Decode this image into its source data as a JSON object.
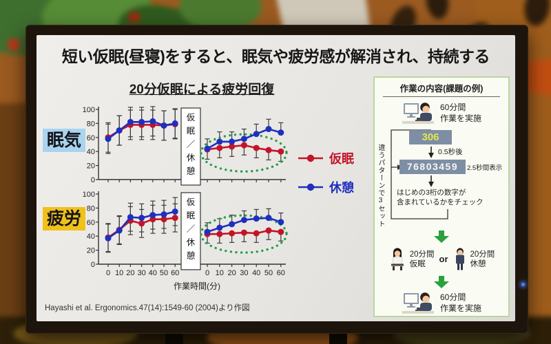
{
  "slide": {
    "title": "短い仮眠(昼寝)をすると、眠気や疲労感が解消され、持続する",
    "chart_section_title": "20分仮眠による疲労回復",
    "xaxis_title": "作業時間(分)",
    "divider_label": "仮眠／休憩",
    "citation": "Hayashi et al. Ergonomics.47(14):1549-60 (2004)より作図",
    "legend": [
      {
        "label": "仮眠",
        "color": "#c31428"
      },
      {
        "label": "休憩",
        "color": "#1f2fc0"
      }
    ]
  },
  "chart_data": [
    {
      "type": "line",
      "label": "眠気",
      "label_bg": "#a9d4ef",
      "x": [
        0,
        10,
        20,
        30,
        40,
        50,
        60
      ],
      "ylim": [
        0,
        100
      ],
      "yticks": [
        0,
        20,
        40,
        60,
        80,
        100
      ],
      "grid": false,
      "series": [
        {
          "name": "仮眠",
          "color": "#c31428",
          "before": [
            60,
            70,
            78,
            78,
            78,
            77,
            79
          ],
          "after": [
            43,
            45,
            47,
            49,
            45,
            42,
            40
          ],
          "err_before": 21,
          "err_after": 14,
          "err_dir_after": "down"
        },
        {
          "name": "休憩",
          "color": "#1f2fc0",
          "before": [
            58,
            70,
            82,
            82,
            83,
            77,
            80
          ],
          "after": [
            44,
            54,
            54,
            58,
            65,
            72,
            67
          ],
          "err_before": 21,
          "err_after": 14,
          "err_dir_after": "up"
        }
      ],
      "highlight": {
        "segment": "after",
        "center_v": 38,
        "color": "#22a04a"
      }
    },
    {
      "type": "line",
      "label": "疲労",
      "label_bg": "#f0c11a",
      "x": [
        0,
        10,
        20,
        30,
        40,
        50,
        60
      ],
      "ylim": [
        0,
        100
      ],
      "yticks": [
        0,
        20,
        40,
        60,
        80,
        100
      ],
      "grid": false,
      "series": [
        {
          "name": "仮眠",
          "color": "#c31428",
          "before": [
            38,
            49,
            62,
            58,
            64,
            64,
            66
          ],
          "after": [
            43,
            43,
            44,
            45,
            44,
            48,
            46
          ],
          "err_before": 20,
          "err_after": 13,
          "err_dir_after": "down"
        },
        {
          "name": "休憩",
          "color": "#1f2fc0",
          "before": [
            37,
            48,
            67,
            66,
            70,
            71,
            75
          ],
          "after": [
            46,
            52,
            57,
            63,
            65,
            66,
            60
          ],
          "err_before": 20,
          "err_after": 13,
          "err_dir_after": "up"
        }
      ],
      "highlight": {
        "segment": "after",
        "center_v": 43,
        "color": "#22a04a"
      }
    }
  ],
  "panel": {
    "title": "作業の内容(課題の例)",
    "work_line1": "60分間",
    "work_line2": "作業を実施",
    "target_number": "306",
    "delay_label": "0.5秒後",
    "display_number": "76803459",
    "display_duration_label": "2.5秒間表示",
    "check_line1": "はじめの3桁の数字が",
    "check_line2": "含まれているかをチェック",
    "loop_label": "違うパターンで3セット",
    "nap_line1": "20分間",
    "nap_line2": "仮眠",
    "or_label": "or",
    "rest_line1": "20分間",
    "rest_line2": "休憩"
  },
  "colors": {
    "accent_green": "#2aa13c",
    "highlight_green": "#22a04a",
    "numbox_bg": "#7e8ea4",
    "target_number_color": "#e5e54e",
    "display_number_color": "#f7f7f5"
  }
}
